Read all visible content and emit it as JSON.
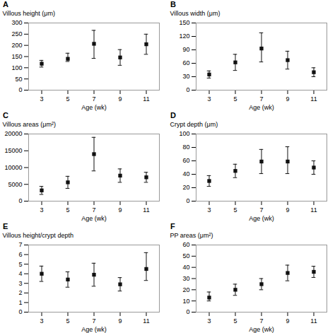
{
  "chart_data": [
    {
      "type": "scatter",
      "title": "A",
      "xlabel": "Age (wk)",
      "ylabel": "Villous height (μm)",
      "x": [
        3,
        5,
        7,
        9,
        11
      ],
      "values": [
        118,
        140,
        207,
        146,
        205
      ],
      "yerr_lo": [
        15,
        12,
        65,
        35,
        45
      ],
      "yerr_hi": [
        15,
        25,
        60,
        35,
        45
      ],
      "xlim": [
        2,
        12
      ],
      "xticks": [
        3,
        5,
        7,
        9,
        11
      ],
      "ylim": [
        0,
        300
      ],
      "yticks": [
        0,
        50,
        100,
        150,
        200,
        250,
        300
      ],
      "color": "#111111",
      "marker": "square",
      "grid": false
    },
    {
      "type": "scatter",
      "title": "B",
      "xlabel": "Age (wk)",
      "ylabel": "Villous width (μm)",
      "x": [
        3,
        5,
        7,
        9,
        11
      ],
      "values": [
        35,
        62,
        93,
        67,
        40
      ],
      "yerr_lo": [
        8,
        18,
        30,
        20,
        10
      ],
      "yerr_hi": [
        8,
        18,
        35,
        20,
        10
      ],
      "xlim": [
        2,
        12
      ],
      "xticks": [
        3,
        5,
        7,
        9,
        11
      ],
      "ylim": [
        0,
        150
      ],
      "yticks": [
        0,
        30,
        60,
        90,
        120,
        150
      ],
      "color": "#111111",
      "marker": "square",
      "grid": false
    },
    {
      "type": "scatter",
      "title": "C",
      "xlabel": "Age (wk)",
      "ylabel": "Villous areas (μm²)",
      "x": [
        3,
        5,
        7,
        9,
        11
      ],
      "values": [
        3200,
        5600,
        14000,
        7600,
        7100
      ],
      "yerr_lo": [
        1200,
        1800,
        5000,
        2000,
        1500
      ],
      "yerr_hi": [
        1200,
        1800,
        5000,
        2000,
        1500
      ],
      "xlim": [
        2,
        12
      ],
      "xticks": [
        3,
        5,
        7,
        9,
        11
      ],
      "ylim": [
        0,
        20000
      ],
      "yticks": [
        0,
        5000,
        10000,
        15000,
        20000
      ],
      "color": "#111111",
      "marker": "square",
      "grid": false
    },
    {
      "type": "scatter",
      "title": "D",
      "xlabel": "Age (wk)",
      "ylabel": "Crypt depth (μm)",
      "x": [
        3,
        5,
        7,
        9,
        11
      ],
      "values": [
        30,
        45,
        59,
        59,
        50
      ],
      "yerr_lo": [
        8,
        10,
        18,
        18,
        10
      ],
      "yerr_hi": [
        8,
        10,
        18,
        22,
        10
      ],
      "xlim": [
        2,
        12
      ],
      "xticks": [
        3,
        5,
        7,
        9,
        11
      ],
      "ylim": [
        0,
        100
      ],
      "yticks": [
        0,
        20,
        40,
        60,
        80,
        100
      ],
      "color": "#111111",
      "marker": "square",
      "grid": false
    },
    {
      "type": "scatter",
      "title": "E",
      "xlabel": "Age (wk)",
      "ylabel": "Villous height/crypt depth",
      "x": [
        3,
        5,
        7,
        9,
        11
      ],
      "values": [
        4.0,
        3.4,
        3.9,
        2.9,
        4.5
      ],
      "yerr_lo": [
        0.8,
        0.8,
        1.2,
        0.7,
        1.2
      ],
      "yerr_hi": [
        0.8,
        0.8,
        1.2,
        0.7,
        1.7
      ],
      "xlim": [
        2,
        12
      ],
      "xticks": [
        3,
        5,
        7,
        9,
        11
      ],
      "ylim": [
        0,
        7
      ],
      "yticks": [
        0,
        1,
        2,
        3,
        4,
        5,
        6,
        7
      ],
      "color": "#111111",
      "marker": "square",
      "grid": false
    },
    {
      "type": "scatter",
      "title": "F",
      "xlabel": "Age (wk)",
      "ylabel": "PP areas (μm²)",
      "x": [
        3,
        5,
        7,
        9,
        11
      ],
      "values": [
        13,
        20,
        25,
        35,
        36
      ],
      "yerr_lo": [
        3,
        5,
        5,
        7,
        5
      ],
      "yerr_hi": [
        5,
        5,
        5,
        7,
        5
      ],
      "xlim": [
        2,
        12
      ],
      "xticks": [
        3,
        5,
        7,
        9,
        11
      ],
      "ylim": [
        0,
        60
      ],
      "yticks": [
        0,
        10,
        20,
        30,
        40,
        50,
        60
      ],
      "color": "#111111",
      "marker": "square",
      "grid": false
    }
  ]
}
